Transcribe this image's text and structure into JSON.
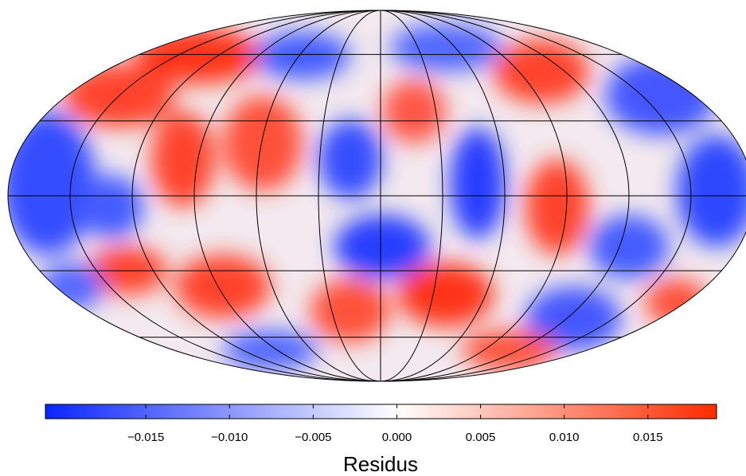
{
  "colorbar": {
    "label": "Residus",
    "lim": [
      -0.021,
      0.0191
    ],
    "ticks": [
      {
        "value": -0.015,
        "label": "−0.015"
      },
      {
        "value": -0.01,
        "label": "−0.010"
      },
      {
        "value": -0.005,
        "label": "−0.005"
      },
      {
        "value": 0,
        "label": "0.000"
      },
      0.005,
      {
        "value": 0.01,
        "label": "0.010"
      },
      0.015
    ],
    "colors": [
      "#0a24ff",
      "#ffffff",
      "#ff2a00"
    ]
  }
}
